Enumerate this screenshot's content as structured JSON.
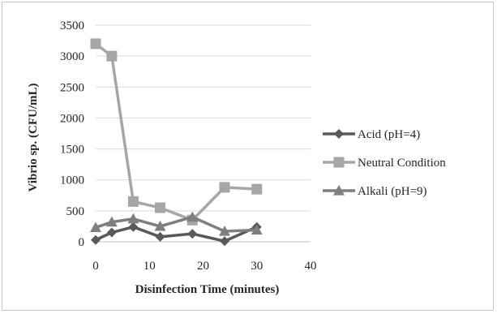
{
  "chart_data": {
    "type": "line",
    "title": "",
    "xlabel": "Disinfection Time (minutes)",
    "ylabel": "Vibrio sp. (CFU/mL)",
    "xlim": [
      0,
      40
    ],
    "ylim": [
      0,
      3500
    ],
    "xticks": [
      0,
      10,
      20,
      30,
      40
    ],
    "yticks": [
      0,
      500,
      1000,
      1500,
      2000,
      2500,
      3000,
      3500
    ],
    "xtick_labels": [
      "0",
      "10",
      "20",
      "30",
      "40"
    ],
    "ytick_labels": [
      "0",
      "500",
      "1000",
      "1500",
      "2000",
      "2500",
      "3000",
      "3500"
    ],
    "grid": "horizontal",
    "legend_position": "right",
    "series": [
      {
        "name": "Acid (pH=4)",
        "marker": "diamond",
        "color": "#595959",
        "x": [
          0,
          3,
          7,
          12,
          18,
          24,
          30
        ],
        "y": [
          30,
          150,
          240,
          80,
          130,
          10,
          240
        ]
      },
      {
        "name": "Neutral Condition",
        "marker": "square",
        "color": "#a6a6a6",
        "x": [
          0,
          3,
          7,
          12,
          18,
          24,
          30
        ],
        "y": [
          3200,
          3000,
          650,
          550,
          350,
          880,
          850
        ]
      },
      {
        "name": "Alkali (pH=9)",
        "marker": "triangle",
        "color": "#7f7f7f",
        "x": [
          0,
          3,
          7,
          12,
          18,
          24,
          30
        ],
        "y": [
          230,
          320,
          370,
          250,
          400,
          170,
          190
        ]
      }
    ]
  }
}
